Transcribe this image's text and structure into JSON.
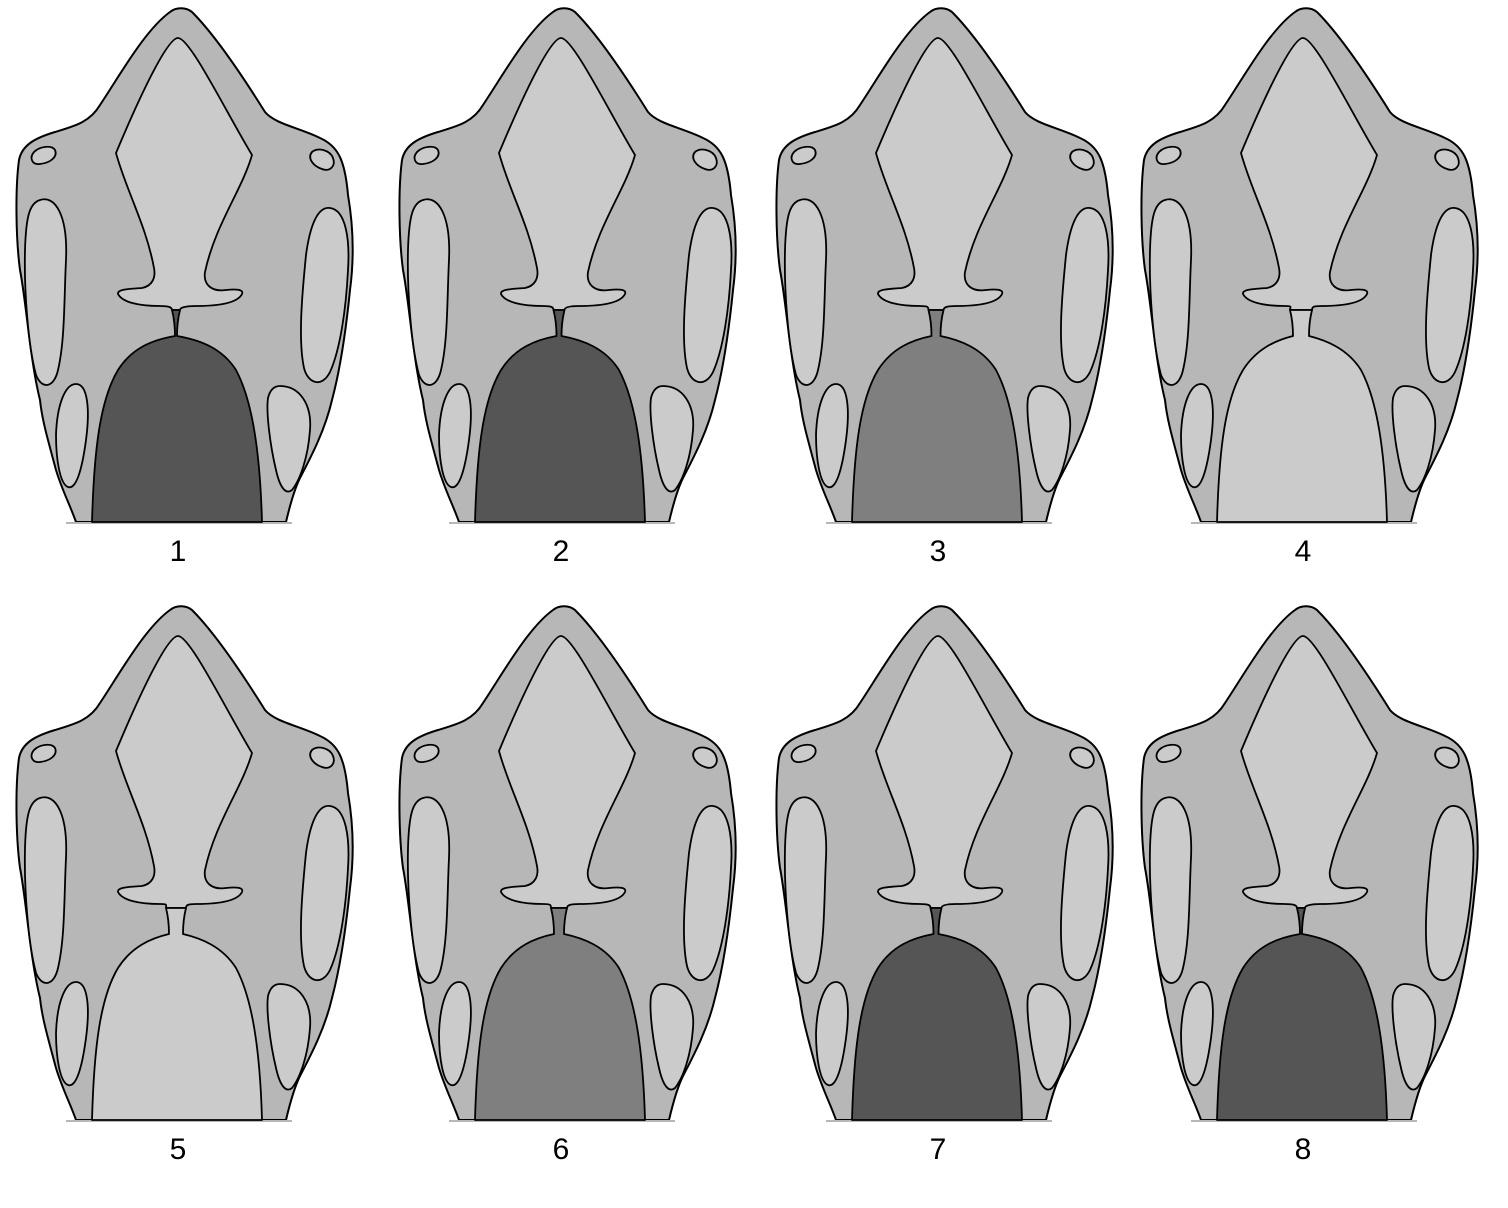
{
  "figure": {
    "panels": [
      {
        "label": "1",
        "cavity_color": "#555555",
        "gap": 2
      },
      {
        "label": "2",
        "cavity_color": "#555555",
        "gap": 5
      },
      {
        "label": "3",
        "cavity_color": "#7f7f7f",
        "gap": 9
      },
      {
        "label": "4",
        "cavity_color": "#cbcbcb",
        "gap": 16
      },
      {
        "label": "5",
        "cavity_color": "#cbcbcb",
        "gap": 14
      },
      {
        "label": "6",
        "cavity_color": "#7f7f7f",
        "gap": 10
      },
      {
        "label": "7",
        "cavity_color": "#555555",
        "gap": 5
      },
      {
        "label": "8",
        "cavity_color": "#555555",
        "gap": 2
      }
    ],
    "colors": {
      "bone": "#b7b7b7",
      "opening": "#cbcbcb",
      "outline": "#000000",
      "background": "#ffffff"
    }
  }
}
